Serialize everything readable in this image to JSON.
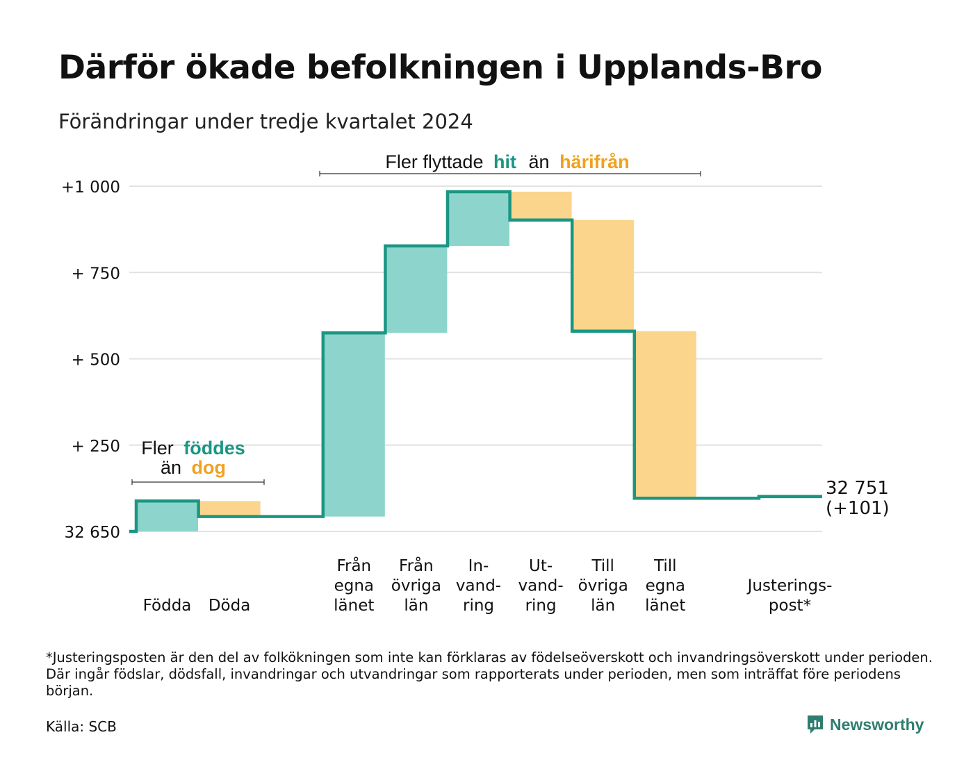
{
  "title": "Därför ökade befolkningen i Upplands-Bro",
  "subtitle": "Förändringar under tredje kvartalet 2024",
  "colors": {
    "in": "#8dd5cc",
    "out": "#fbd58c",
    "line": "#1a9683",
    "label_in": "#1a9683",
    "label_out": "#f0a120",
    "grid": "#e2e2e2"
  },
  "annotations": {
    "births": {
      "prefix": "Fler",
      "green": "föddes",
      "mid": "än",
      "orange": "dog"
    },
    "migration": {
      "prefix": "Fler flyttade",
      "green": "hit",
      "mid": "än",
      "orange": "härifrån"
    }
  },
  "end_label": {
    "value": "32 751",
    "change": "(+101)"
  },
  "footnote": "*Justeringsposten är den del av folkökningen som inte kan förklaras av födelseöverskott och invandringsöverskott under perioden. Där ingår födslar, dödsfall, invandringar och utvandringar som rapporterats under perioden, men som inträffat före periodens början.",
  "source": "Källa: SCB",
  "brand": {
    "name": "Newsworthy",
    "icon": "newsworthy-logo-icon"
  },
  "chart_data": {
    "type": "waterfall",
    "baseline": 32650,
    "y_tick_labels": [
      "32 650",
      "+  250",
      "+  500",
      "+  750",
      "+1 000"
    ],
    "y_tick_values": [
      0,
      250,
      500,
      750,
      1000
    ],
    "ylim": [
      0,
      1000
    ],
    "grid": true,
    "steps": [
      {
        "label": [
          "Födda"
        ],
        "delta": 88,
        "kind": "in"
      },
      {
        "label": [
          "Döda"
        ],
        "delta": -45,
        "kind": "out"
      },
      {
        "label": [],
        "delta": 0,
        "kind": "gap"
      },
      {
        "label": [
          "Från",
          "egna",
          "länet"
        ],
        "delta": 532,
        "kind": "in"
      },
      {
        "label": [
          "Från",
          "övriga",
          "län"
        ],
        "delta": 252,
        "kind": "in"
      },
      {
        "label": [
          "In-",
          "vand-",
          "ring"
        ],
        "delta": 157,
        "kind": "in"
      },
      {
        "label": [
          "Ut-",
          "vand-",
          "ring"
        ],
        "delta": -82,
        "kind": "out"
      },
      {
        "label": [
          "Till",
          "övriga",
          "län"
        ],
        "delta": -322,
        "kind": "out"
      },
      {
        "label": [
          "Till",
          "egna",
          "länet"
        ],
        "delta": -484,
        "kind": "out"
      },
      {
        "label": [],
        "delta": 0,
        "kind": "gap"
      },
      {
        "label": [
          "Justerings-",
          "post*"
        ],
        "delta": 5,
        "kind": "in"
      }
    ],
    "end_value": 32751,
    "end_change": 101
  }
}
